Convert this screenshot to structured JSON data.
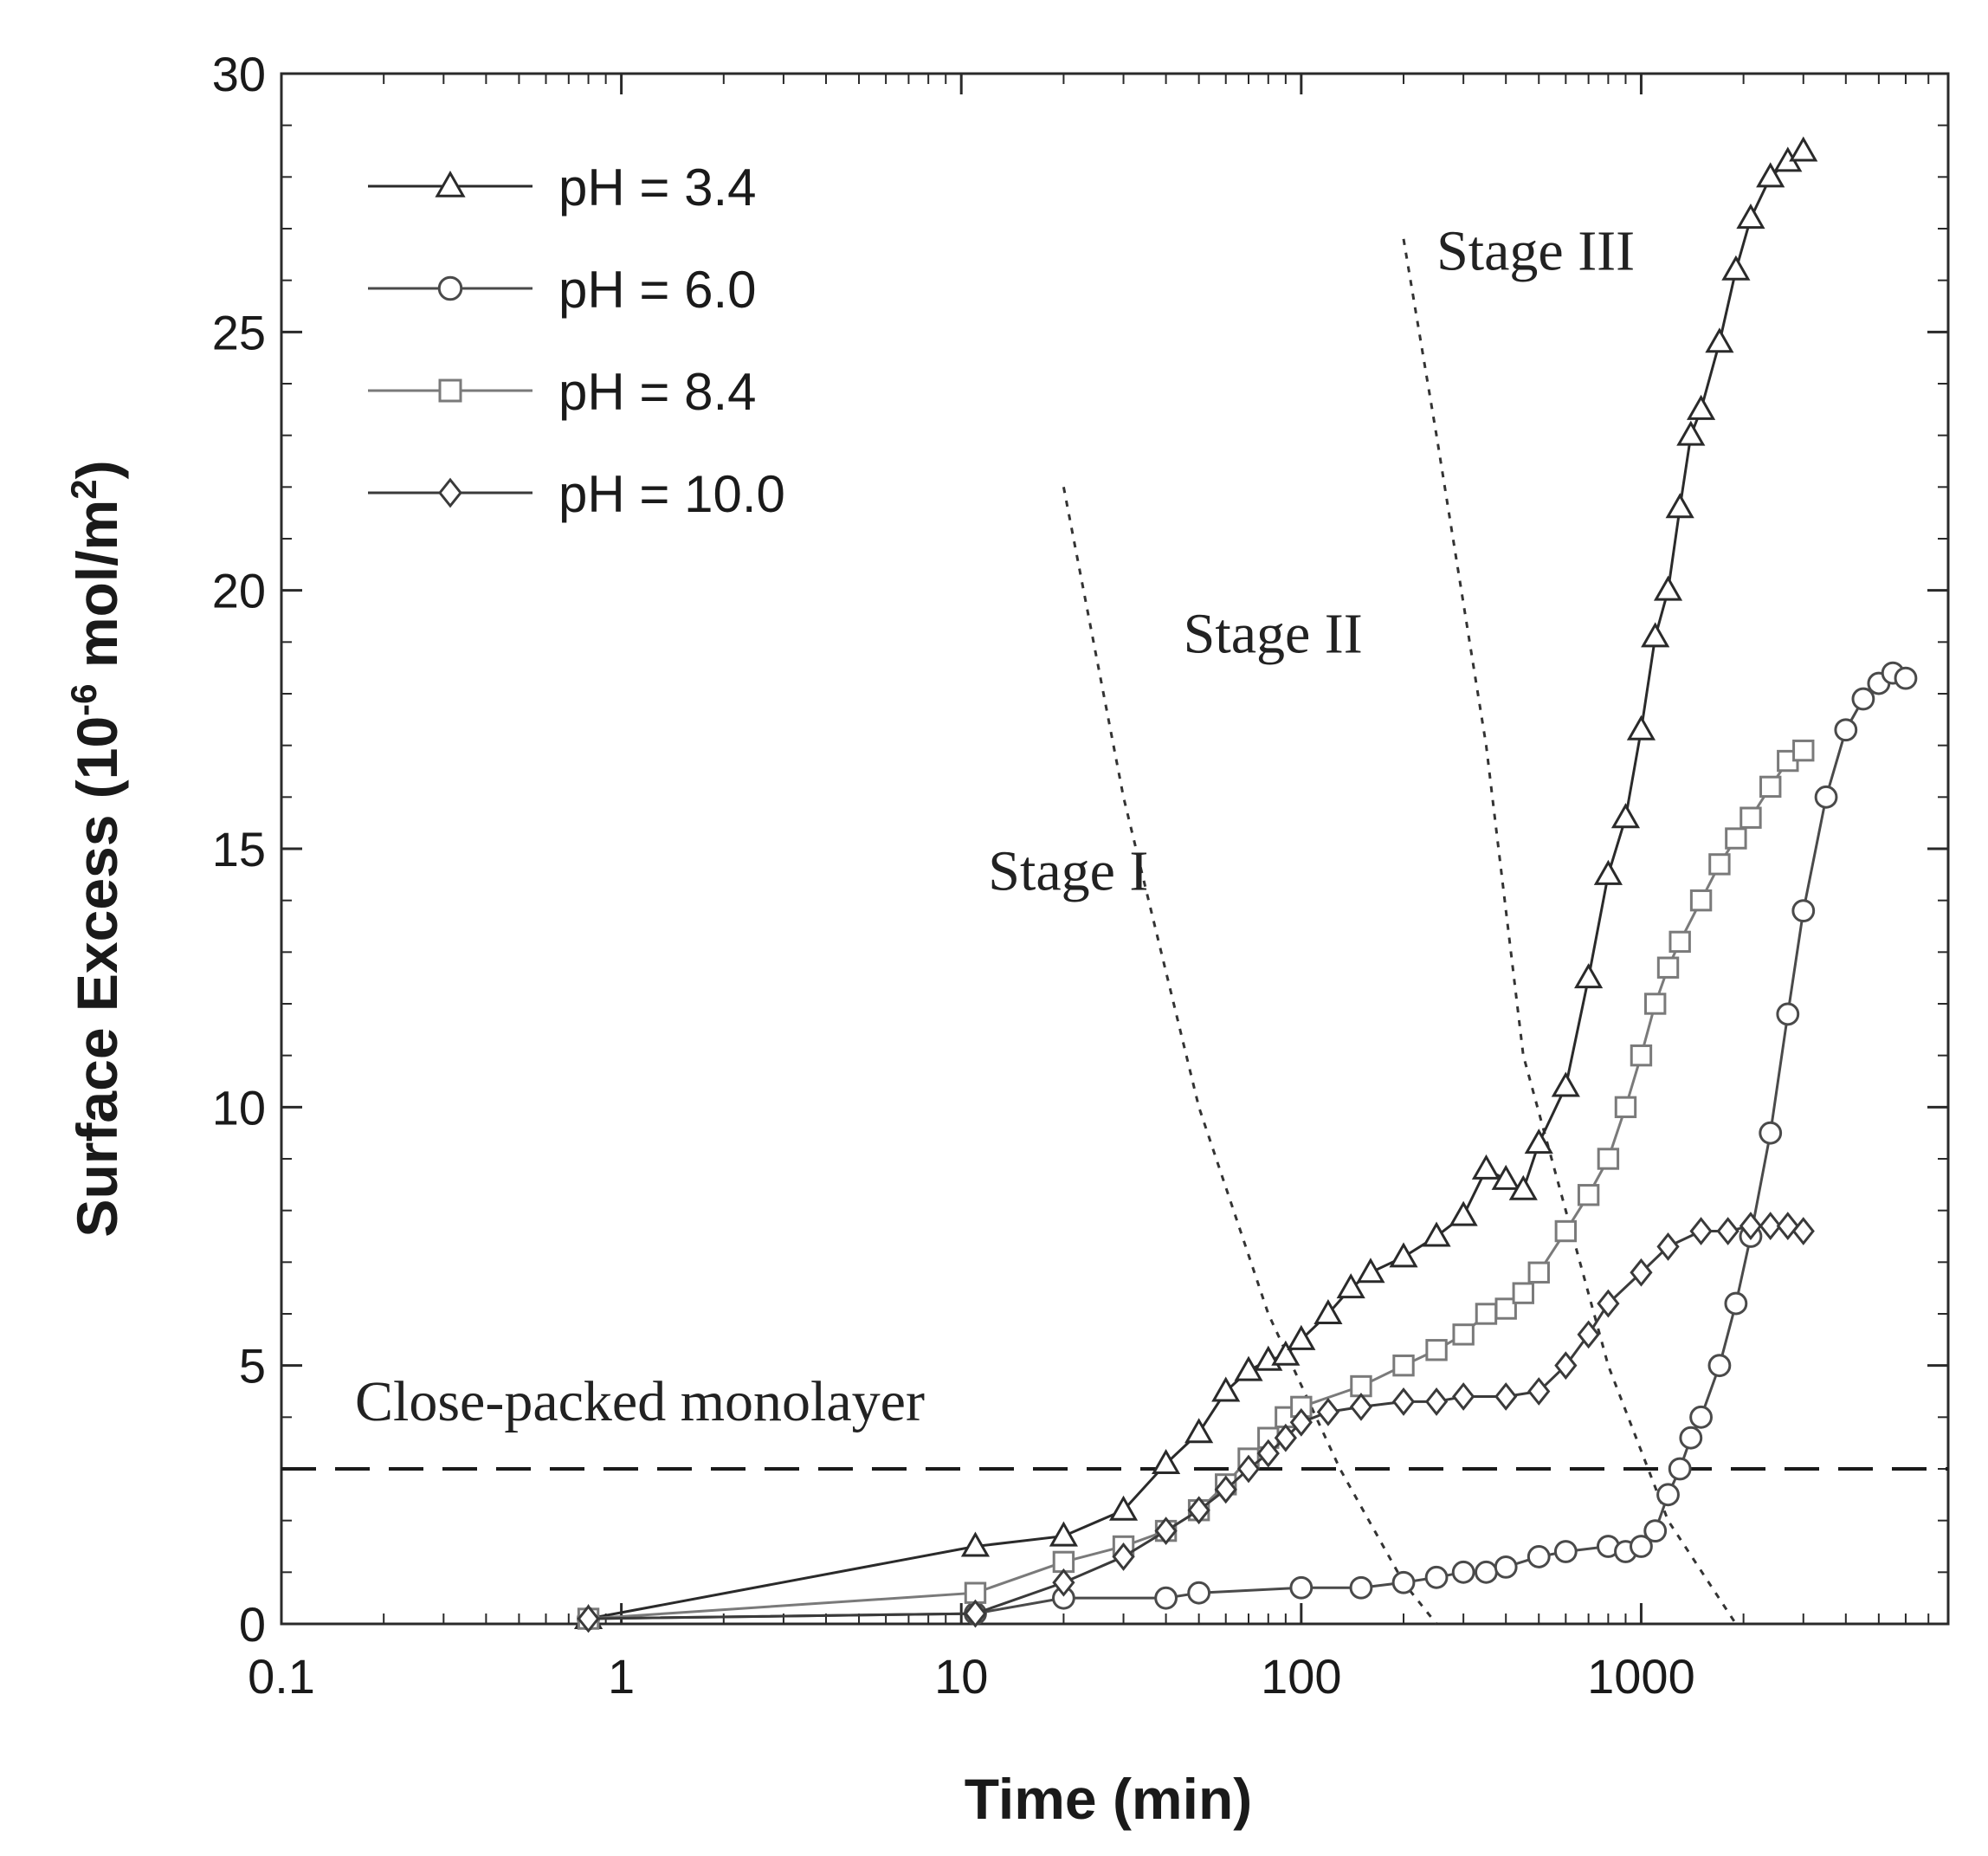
{
  "chart_data": {
    "type": "line",
    "title": "",
    "xlabel": "Time (min)",
    "ylabel_main": "Surface Excess (10",
    "ylabel_exp": "-6",
    "ylabel_unit": " mol/m",
    "ylabel_unit_exp": "2",
    "ylabel_close": ")",
    "xscale": "log",
    "xlim": [
      0.1,
      8000
    ],
    "ylim": [
      0,
      30
    ],
    "x_ticks": [
      0.1,
      1,
      10,
      100,
      1000
    ],
    "x_tick_labels": [
      "0.1",
      "1",
      "10",
      "100",
      "1000"
    ],
    "y_ticks": [
      0,
      5,
      10,
      15,
      20,
      25,
      30
    ],
    "y_tick_labels": [
      "0",
      "5",
      "10",
      "15",
      "20",
      "25",
      "30"
    ],
    "legend_position": "top-left",
    "series": [
      {
        "name": "pH = 3.4",
        "marker": "triangle",
        "color": "#2a2a2a",
        "x": [
          0.8,
          11,
          20,
          30,
          40,
          50,
          60,
          70,
          80,
          90,
          100,
          120,
          140,
          160,
          200,
          250,
          300,
          350,
          400,
          450,
          500,
          600,
          700,
          800,
          900,
          1000,
          1100,
          1200,
          1300,
          1400,
          1500,
          1700,
          1900,
          2100,
          2400,
          2700,
          3000
        ],
        "y": [
          0.1,
          1.5,
          1.7,
          2.2,
          3.1,
          3.7,
          4.5,
          4.9,
          5.1,
          5.2,
          5.5,
          6.0,
          6.5,
          6.8,
          7.1,
          7.5,
          7.9,
          8.8,
          8.6,
          8.4,
          9.3,
          10.4,
          12.5,
          14.5,
          15.6,
          17.3,
          19.1,
          20.0,
          21.6,
          23.0,
          23.5,
          24.8,
          26.2,
          27.2,
          28.0,
          28.3,
          28.5
        ]
      },
      {
        "name": "pH = 6.0",
        "marker": "circle",
        "color": "#4a4a4a",
        "x": [
          0.8,
          11,
          20,
          40,
          50,
          100,
          150,
          200,
          250,
          300,
          350,
          400,
          500,
          600,
          800,
          900,
          1000,
          1100,
          1200,
          1300,
          1400,
          1500,
          1700,
          1900,
          2100,
          2400,
          2700,
          3000,
          3500,
          4000,
          4500,
          5000,
          5500,
          6000
        ],
        "y": [
          0.1,
          0.2,
          0.5,
          0.5,
          0.6,
          0.7,
          0.7,
          0.8,
          0.9,
          1.0,
          1.0,
          1.1,
          1.3,
          1.4,
          1.5,
          1.4,
          1.5,
          1.8,
          2.5,
          3.0,
          3.6,
          4.0,
          5.0,
          6.2,
          7.5,
          9.5,
          11.8,
          13.8,
          16.0,
          17.3,
          17.9,
          18.2,
          18.4,
          18.3
        ]
      },
      {
        "name": "pH = 8.4",
        "marker": "square",
        "color": "#7a7a7a",
        "x": [
          0.8,
          11,
          20,
          30,
          40,
          50,
          60,
          70,
          80,
          90,
          100,
          150,
          200,
          250,
          300,
          350,
          400,
          450,
          500,
          600,
          700,
          800,
          900,
          1000,
          1100,
          1200,
          1300,
          1500,
          1700,
          1900,
          2100,
          2400,
          2700,
          3000
        ],
        "y": [
          0.1,
          0.6,
          1.2,
          1.5,
          1.8,
          2.2,
          2.7,
          3.2,
          3.6,
          4.0,
          4.2,
          4.6,
          5.0,
          5.3,
          5.6,
          6.0,
          6.1,
          6.4,
          6.8,
          7.6,
          8.3,
          9.0,
          10.0,
          11.0,
          12.0,
          12.7,
          13.2,
          14.0,
          14.7,
          15.2,
          15.6,
          16.2,
          16.7,
          16.9
        ]
      },
      {
        "name": "pH = 10.0",
        "marker": "diamond",
        "color": "#3a3a3a",
        "x": [
          0.8,
          11,
          20,
          30,
          40,
          50,
          60,
          70,
          80,
          90,
          100,
          120,
          150,
          200,
          250,
          300,
          400,
          500,
          600,
          700,
          800,
          1000,
          1200,
          1500,
          1800,
          2100,
          2400,
          2700,
          3000
        ],
        "y": [
          0.1,
          0.2,
          0.8,
          1.3,
          1.8,
          2.2,
          2.6,
          3.0,
          3.3,
          3.6,
          3.9,
          4.1,
          4.2,
          4.3,
          4.3,
          4.4,
          4.4,
          4.5,
          5.0,
          5.6,
          6.2,
          6.8,
          7.3,
          7.6,
          7.6,
          7.7,
          7.7,
          7.7,
          7.6
        ]
      }
    ],
    "reference_line": {
      "y": 3.0,
      "label": "Close-packed monolayer"
    },
    "stage_boundaries": [
      {
        "x": [
          20,
          30,
          50,
          80,
          130,
          200,
          250
        ],
        "y": [
          22,
          16,
          10,
          6,
          3,
          0.8,
          0
        ]
      },
      {
        "x": [
          200,
          250,
          350,
          450,
          600,
          800,
          1200,
          1900
        ],
        "y": [
          26.8,
          23,
          17,
          11,
          8,
          5,
          2,
          0
        ]
      }
    ],
    "annotations": [
      {
        "text": "Stage I",
        "x": 12,
        "y": 14.2
      },
      {
        "text": "Stage II",
        "x": 45,
        "y": 18.8
      },
      {
        "text": "Stage III",
        "x": 250,
        "y": 26.2
      }
    ]
  }
}
